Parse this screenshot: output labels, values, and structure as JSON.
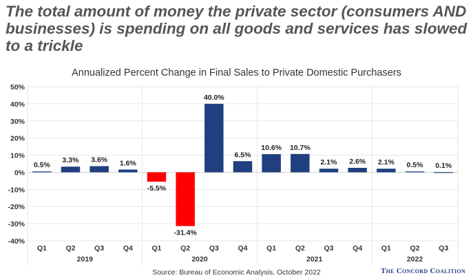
{
  "headline": "The total amount of money the private sector (consumers AND businesses) is spending on all goods and services has slowed to a trickle",
  "source": "Source: Bureau of Economic Analysis, October 2022",
  "logo_text": "The Concord Coalition",
  "colors": {
    "positive": "#1f3f7f",
    "negative": "#ff0000",
    "grid": "#e6e6e6",
    "text": "#333333"
  },
  "chart_data": {
    "type": "bar",
    "title": "Annualized Percent Change in Final Sales to Private Domestic Purchasers",
    "xlabel": "",
    "ylabel": "",
    "ylim": [
      -40,
      50
    ],
    "yticks": [
      50,
      40,
      30,
      20,
      10,
      0,
      -10,
      -20,
      -30,
      -40
    ],
    "ytick_labels": [
      "50%",
      "40%",
      "30%",
      "20%",
      "10%",
      "0%",
      "-10%",
      "-20%",
      "-30%",
      "-40%"
    ],
    "grid": true,
    "categories": [
      "Q1",
      "Q2",
      "Q3",
      "Q4",
      "Q1",
      "Q2",
      "Q3",
      "Q4",
      "Q1",
      "Q2",
      "Q3",
      "Q4",
      "Q1",
      "Q2",
      "Q3"
    ],
    "years": [
      {
        "label": "2019",
        "count": 4
      },
      {
        "label": "2020",
        "count": 4
      },
      {
        "label": "2021",
        "count": 4
      },
      {
        "label": "2022",
        "count": 3
      }
    ],
    "values": [
      0.5,
      3.3,
      3.6,
      1.6,
      -5.5,
      -31.4,
      40.0,
      6.5,
      10.6,
      10.7,
      2.1,
      2.6,
      2.1,
      0.5,
      0.1
    ],
    "data_labels": [
      "0.5%",
      "3.3%",
      "3.6%",
      "1.6%",
      "-5.5%",
      "-31.4%",
      "40.0%",
      "6.5%",
      "10.6%",
      "10.7%",
      "2.1%",
      "2.6%",
      "2.1%",
      "0.5%",
      "0.1%"
    ]
  }
}
